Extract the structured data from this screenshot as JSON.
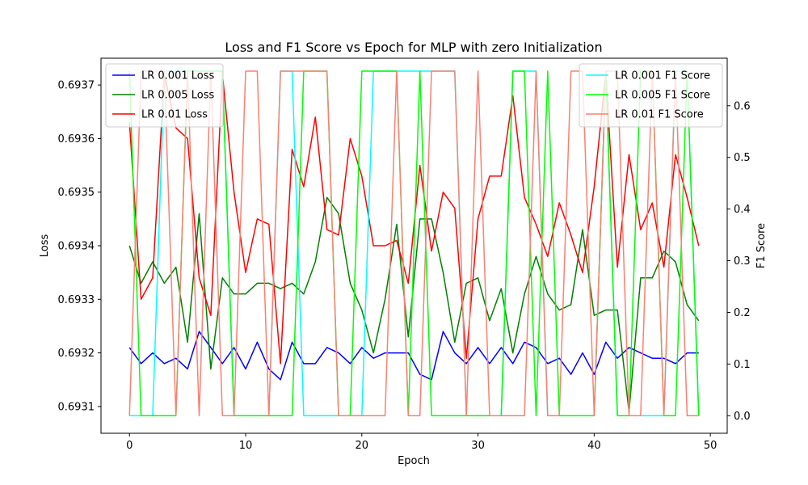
{
  "chart_data": {
    "type": "line",
    "title": "Loss and F1 Score vs Epoch for MLP with zero Initialization",
    "xlabel": "Epoch",
    "ylabel_left": "Loss",
    "ylabel_right": "F1 Score",
    "xlim": [
      -2.45,
      51.45
    ],
    "ylim_left": [
      0.69305,
      0.69375
    ],
    "ylim_right": [
      -0.034,
      0.692
    ],
    "x_ticks": [
      0,
      10,
      20,
      30,
      40,
      50
    ],
    "y_left_ticks": [
      "0.6931",
      "0.6932",
      "0.6933",
      "0.6934",
      "0.6935",
      "0.6936",
      "0.6937"
    ],
    "y_right_ticks": [
      "0.0",
      "0.1",
      "0.2",
      "0.3",
      "0.4",
      "0.5",
      "0.6"
    ],
    "legend_left_position": "top-left",
    "legend_right_position": "top-right",
    "grid": false,
    "x": [
      0,
      1,
      2,
      3,
      4,
      5,
      6,
      7,
      8,
      9,
      10,
      11,
      12,
      13,
      14,
      15,
      16,
      17,
      18,
      19,
      20,
      21,
      22,
      23,
      24,
      25,
      26,
      27,
      28,
      29,
      30,
      31,
      32,
      33,
      34,
      35,
      36,
      37,
      38,
      39,
      40,
      41,
      42,
      43,
      44,
      45,
      46,
      47,
      48,
      49
    ],
    "series": [
      {
        "name": "LR 0.001 Loss",
        "axis": "left",
        "color": "#0000ff",
        "values": [
          0.69321,
          0.69318,
          0.6932,
          0.69318,
          0.69319,
          0.69317,
          0.69324,
          0.69321,
          0.69318,
          0.69321,
          0.69317,
          0.69322,
          0.69317,
          0.69315,
          0.69322,
          0.69318,
          0.69318,
          0.69321,
          0.6932,
          0.69318,
          0.69321,
          0.69319,
          0.6932,
          0.6932,
          0.6932,
          0.69316,
          0.69315,
          0.69324,
          0.6932,
          0.69318,
          0.69321,
          0.69318,
          0.69321,
          0.69318,
          0.69322,
          0.69321,
          0.69318,
          0.69319,
          0.69316,
          0.6932,
          0.69316,
          0.69322,
          0.69319,
          0.69321,
          0.6932,
          0.69319,
          0.69319,
          0.69318,
          0.6932,
          0.6932
        ]
      },
      {
        "name": "LR 0.005 Loss",
        "axis": "left",
        "color": "#008000",
        "values": [
          0.6934,
          0.69333,
          0.69337,
          0.69333,
          0.69336,
          0.69322,
          0.69346,
          0.69317,
          0.69334,
          0.69331,
          0.69331,
          0.69333,
          0.69333,
          0.69332,
          0.69333,
          0.69331,
          0.69337,
          0.69349,
          0.69346,
          0.69333,
          0.69328,
          0.6932,
          0.6933,
          0.69344,
          0.69323,
          0.69345,
          0.69345,
          0.69335,
          0.69322,
          0.69333,
          0.69334,
          0.69326,
          0.69332,
          0.6932,
          0.69331,
          0.69338,
          0.69331,
          0.69328,
          0.69329,
          0.69343,
          0.69327,
          0.69328,
          0.69328,
          0.69309,
          0.69334,
          0.69334,
          0.69339,
          0.69337,
          0.69329,
          0.69326
        ]
      },
      {
        "name": "LR 0.01 Loss",
        "axis": "left",
        "color": "#ff0000",
        "values": [
          0.69363,
          0.6933,
          0.69334,
          0.69372,
          0.69362,
          0.6936,
          0.69334,
          0.69327,
          0.69372,
          0.6935,
          0.69335,
          0.69345,
          0.69344,
          0.69318,
          0.69358,
          0.69351,
          0.69364,
          0.69343,
          0.69342,
          0.6936,
          0.69353,
          0.6934,
          0.6934,
          0.69341,
          0.69333,
          0.69355,
          0.69339,
          0.6935,
          0.69347,
          0.69319,
          0.69345,
          0.69353,
          0.69353,
          0.69368,
          0.69349,
          0.69344,
          0.69338,
          0.69348,
          0.69342,
          0.69335,
          0.69351,
          0.69372,
          0.69336,
          0.69357,
          0.69343,
          0.69348,
          0.69336,
          0.69357,
          0.69349,
          0.6934
        ]
      },
      {
        "name": "LR 0.001 F1 Score",
        "axis": "right",
        "color": "#00ffff",
        "values": [
          0.0,
          0.0,
          0.0,
          0.667,
          0.667,
          0.667,
          0.667,
          0.667,
          0.667,
          0.0,
          0.0,
          0.0,
          0.0,
          0.667,
          0.667,
          0.0,
          0.0,
          0.0,
          0.0,
          0.0,
          0.0,
          0.667,
          0.667,
          0.667,
          0.667,
          0.667,
          0.667,
          0.667,
          0.667,
          0.0,
          0.0,
          0.0,
          0.0,
          0.667,
          0.667,
          0.667,
          0.0,
          0.0,
          0.0,
          0.0,
          0.0,
          0.667,
          0.0,
          0.0,
          0.0,
          0.0,
          0.0,
          0.667,
          0.667,
          0.0
        ]
      },
      {
        "name": "LR 0.005 F1 Score",
        "axis": "right",
        "color": "#00ff00",
        "values": [
          0.667,
          0.0,
          0.0,
          0.0,
          0.0,
          0.667,
          0.667,
          0.667,
          0.667,
          0.0,
          0.0,
          0.0,
          0.0,
          0.0,
          0.0,
          0.667,
          0.667,
          0.667,
          0.0,
          0.0,
          0.667,
          0.667,
          0.667,
          0.667,
          0.0,
          0.667,
          0.0,
          0.0,
          0.0,
          0.0,
          0.0,
          0.0,
          0.0,
          0.667,
          0.667,
          0.0,
          0.667,
          0.0,
          0.0,
          0.0,
          0.0,
          0.667,
          0.0,
          0.0,
          0.667,
          0.667,
          0.0,
          0.0,
          0.667,
          0.0
        ]
      },
      {
        "name": "LR 0.01 F1 Score",
        "axis": "right",
        "color": "#fa8072",
        "values": [
          0.0,
          0.667,
          0.667,
          0.667,
          0.0,
          0.667,
          0.0,
          0.667,
          0.0,
          0.0,
          0.667,
          0.667,
          0.0,
          0.667,
          0.667,
          0.667,
          0.667,
          0.667,
          0.0,
          0.0,
          0.0,
          0.0,
          0.0,
          0.667,
          0.0,
          0.0,
          0.667,
          0.667,
          0.667,
          0.0,
          0.667,
          0.0,
          0.0,
          0.0,
          0.0,
          0.667,
          0.0,
          0.0,
          0.667,
          0.667,
          0.0,
          0.667,
          0.667,
          0.0,
          0.0,
          0.667,
          0.0,
          0.667,
          0.0,
          0.0
        ]
      }
    ]
  }
}
